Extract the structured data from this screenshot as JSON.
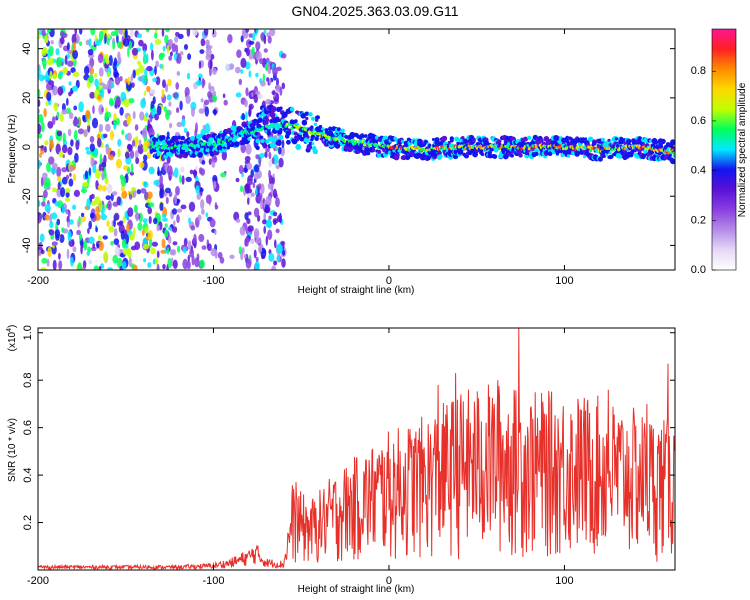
{
  "title": "GN04.2025.363.03.09.G11",
  "colors": {
    "snr_line": "#e8302a",
    "background": "#ffffff",
    "axis": "#000000",
    "colormap": [
      "#ffffff",
      "#e6d8f6",
      "#b48ce8",
      "#8a3fe0",
      "#5a12d8",
      "#1414ee",
      "#00e8ff",
      "#00ff5a",
      "#c0ff00",
      "#ffd800",
      "#ff8c00",
      "#ff2020",
      "#ff1493"
    ]
  },
  "chart_data": [
    {
      "type": "heatmap",
      "name": "spectrogram",
      "xlabel": "Height of straight line (km)",
      "ylabel": "Frequency (Hz)",
      "xlim": [
        -200,
        163
      ],
      "ylim": [
        -50,
        48
      ],
      "xticks": [
        -200,
        -100,
        0,
        100
      ],
      "yticks": [
        -40,
        -20,
        0,
        20,
        40
      ],
      "colorbar": {
        "label": "Normalized spectral amplitude",
        "range": [
          0,
          0.97
        ],
        "ticks": [
          "0.0",
          "0.2",
          "0.4",
          "0.6",
          "0.8"
        ],
        "tick_values": [
          0,
          0.2,
          0.4,
          0.6,
          0.8
        ]
      },
      "signal_track": {
        "height_km": [
          -135,
          -120,
          -100,
          -85,
          -72,
          -60,
          -52,
          -40,
          -20,
          0,
          20,
          40,
          60,
          80,
          100,
          120,
          140,
          163
        ],
        "frequency_hz": [
          0,
          0,
          1,
          5,
          8,
          9,
          8,
          5,
          2,
          0,
          -1,
          0,
          0,
          0,
          0,
          -1,
          0,
          -2
        ]
      },
      "noise_region_km": [
        -200,
        -60
      ]
    },
    {
      "type": "line",
      "name": "snr",
      "xlabel": "Height of straight line (km)",
      "ylabel": "SNR (10 * v/v)",
      "scale_label": "(x10",
      "scale_exponent": "4",
      "xlim": [
        -200,
        163
      ],
      "ylim": [
        0,
        1.02
      ],
      "xticks": [
        -200,
        -100,
        0,
        100
      ],
      "yticks": [
        "0.2",
        "0.4",
        "0.6",
        "0.8",
        "1.0"
      ],
      "ytick_values": [
        0.2,
        0.4,
        0.6,
        0.8,
        1.0
      ],
      "envelope": {
        "height_km": [
          -200,
          -120,
          -100,
          -90,
          -80,
          -76,
          -70,
          -60,
          -55,
          -45,
          -30,
          -15,
          0,
          20,
          40,
          60,
          80,
          100,
          120,
          140,
          163
        ],
        "snr_max": [
          0.02,
          0.02,
          0.03,
          0.05,
          0.09,
          0.12,
          0.05,
          0.04,
          0.35,
          0.28,
          0.4,
          0.48,
          0.56,
          0.62,
          0.72,
          0.76,
          0.72,
          0.72,
          0.7,
          0.65,
          0.6
        ]
      },
      "peaks": [
        {
          "height_km": 74,
          "snr": 1.02
        },
        {
          "height_km": 159,
          "snr": 0.87
        },
        {
          "height_km": 28,
          "snr": 0.78
        },
        {
          "height_km": 38,
          "snr": 0.83
        },
        {
          "height_km": 62,
          "snr": 0.8
        },
        {
          "height_km": 125,
          "snr": 0.76
        },
        {
          "height_km": 147,
          "snr": 0.7
        },
        {
          "height_km": -53,
          "snr": 0.37
        }
      ]
    }
  ]
}
